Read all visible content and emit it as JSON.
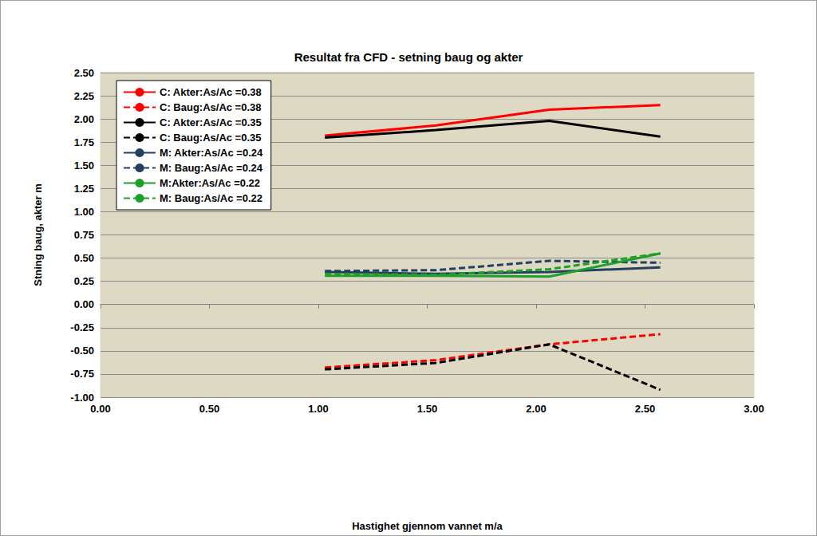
{
  "chart_data": {
    "type": "line",
    "title": "Resultat fra CFD - setning baug og akter",
    "x_label": "Hastighet gjennom vannet m/a",
    "y_label": "Stning baug, akter m",
    "x": [
      1.03,
      1.54,
      2.06,
      2.57
    ],
    "series": [
      {
        "name": "C: Akter:As/Ac =0.38",
        "color": "#ff0000",
        "line_style": "solid",
        "marker": "none",
        "values": [
          1.82,
          1.93,
          2.1,
          2.15
        ]
      },
      {
        "name": "C: Baug:As/Ac =0.38",
        "color": "#ff0000",
        "line_style": "dashed",
        "marker": "none",
        "values": [
          -0.68,
          -0.6,
          -0.43,
          -0.32
        ]
      },
      {
        "name": "C: Akter:As/Ac =0.35",
        "color": "#000000",
        "line_style": "solid",
        "marker": "none",
        "values": [
          1.8,
          1.88,
          1.98,
          1.81
        ]
      },
      {
        "name": "C: Baug:As/Ac =0.35",
        "color": "#000000",
        "line_style": "dashed",
        "marker": "none",
        "values": [
          -0.7,
          -0.63,
          -0.43,
          -0.92
        ]
      },
      {
        "name": "M: Akter:As/Ac =0.24",
        "color": "#243f60",
        "line_style": "solid",
        "marker": "none",
        "values": [
          0.35,
          0.33,
          0.35,
          0.4
        ]
      },
      {
        "name": "M: Baug:As/Ac =0.24",
        "color": "#243f60",
        "line_style": "dashed",
        "marker": "none",
        "values": [
          0.36,
          0.37,
          0.47,
          0.45
        ]
      },
      {
        "name": "M:Akter:As/Ac =0.22",
        "color": "#1ea02a",
        "line_style": "solid",
        "marker": "none",
        "values": [
          0.31,
          0.31,
          0.3,
          0.55
        ]
      },
      {
        "name": "M: Baug:As/Ac =0.22",
        "color": "#1ea02a",
        "line_style": "dashed",
        "marker": "none",
        "values": [
          0.33,
          0.32,
          0.38,
          0.55
        ]
      }
    ],
    "xlim": [
      0,
      3
    ],
    "xticks": [
      {
        "value": 0,
        "label": "0.00"
      },
      {
        "value": 0.5,
        "label": "0.50"
      },
      {
        "value": 1,
        "label": "1.00"
      },
      {
        "value": 1.5,
        "label": "1.50"
      },
      {
        "value": 2,
        "label": "2.00"
      },
      {
        "value": 2.5,
        "label": "2.50"
      },
      {
        "value": 3,
        "label": "3.00"
      }
    ],
    "ylim": [
      -1,
      2.5
    ],
    "yticks": [
      {
        "value": -1,
        "label": "-1.00"
      },
      {
        "value": -0.75,
        "label": "-0.75"
      },
      {
        "value": -0.5,
        "label": "-0.50"
      },
      {
        "value": -0.25,
        "label": "-0.25"
      },
      {
        "value": 0,
        "label": "0.00"
      },
      {
        "value": 0.25,
        "label": "0.25"
      },
      {
        "value": 0.5,
        "label": "0.50"
      },
      {
        "value": 0.75,
        "label": "0.75"
      },
      {
        "value": 1,
        "label": "1.00"
      },
      {
        "value": 1.25,
        "label": "1.25"
      },
      {
        "value": 1.5,
        "label": "1.50"
      },
      {
        "value": 1.75,
        "label": "1.75"
      },
      {
        "value": 2,
        "label": "2.00"
      },
      {
        "value": 2.25,
        "label": "2.25"
      },
      {
        "value": 2.5,
        "label": "2.50"
      }
    ],
    "grid": true,
    "legend": "upper left"
  }
}
